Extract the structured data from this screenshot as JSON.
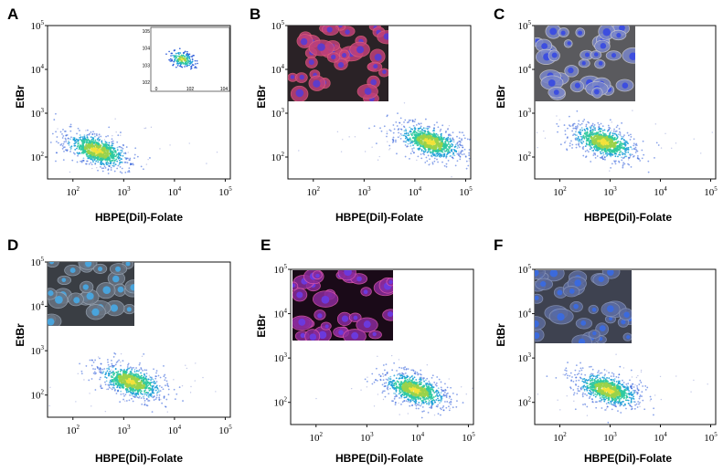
{
  "chart_data": [
    {
      "type": "scatter",
      "panel": "A",
      "xlabel": "HBPE(Dil)-Folate",
      "ylabel": "EtBr",
      "xscale": "log",
      "yscale": "log",
      "x_ticks": [
        "10^2",
        "10^3",
        "10^4",
        "10^5"
      ],
      "y_ticks": [
        "10^2",
        "10^3",
        "10^4",
        "10^5"
      ],
      "cluster_center": {
        "x": 300,
        "y": 140
      },
      "inset": {
        "kind": "flow-scatter",
        "x_ticks": [
          "0",
          "10^2",
          "10^4"
        ],
        "y_ticks": [
          "10^2",
          "10^3",
          "10^4",
          "10^5"
        ]
      }
    },
    {
      "type": "scatter",
      "panel": "B",
      "xlabel": "HBPE(Dil)-Folate",
      "ylabel": "EtBr",
      "xscale": "log",
      "yscale": "log",
      "x_ticks": [
        "10^2",
        "10^3",
        "10^4",
        "10^5"
      ],
      "y_ticks": [
        "10^2",
        "10^3",
        "10^4",
        "10^5"
      ],
      "cluster_center": {
        "x": 20000,
        "y": 220
      },
      "inset": {
        "kind": "micrograph",
        "palette": "red-blue"
      }
    },
    {
      "type": "scatter",
      "panel": "C",
      "xlabel": "HBPE(Dil)-Folate",
      "ylabel": "EtBr",
      "xscale": "log",
      "yscale": "log",
      "x_ticks": [
        "10^2",
        "10^3",
        "10^4",
        "10^5"
      ],
      "y_ticks": [
        "10^2",
        "10^3",
        "10^4",
        "10^5"
      ],
      "cluster_center": {
        "x": 750,
        "y": 220
      },
      "inset": {
        "kind": "micrograph",
        "palette": "gray-blue"
      }
    },
    {
      "type": "scatter",
      "panel": "D",
      "xlabel": "HBPE(Dil)-Folate",
      "ylabel": "EtBr",
      "xscale": "log",
      "yscale": "log",
      "x_ticks": [
        "10^2",
        "10^3",
        "10^4",
        "10^5"
      ],
      "y_ticks": [
        "10^2",
        "10^3",
        "10^4",
        "10^5"
      ],
      "cluster_center": {
        "x": 1400,
        "y": 200
      },
      "inset": {
        "kind": "micrograph",
        "palette": "gray-cyan"
      }
    },
    {
      "type": "scatter",
      "panel": "E",
      "xlabel": "HBPE(Dil)-Folate",
      "ylabel": "EtBr",
      "xscale": "log",
      "yscale": "log",
      "x_ticks": [
        "10^2",
        "10^3",
        "10^4",
        "10^5"
      ],
      "y_ticks": [
        "10^2",
        "10^3",
        "10^4",
        "10^5"
      ],
      "cluster_center": {
        "x": 9000,
        "y": 190
      },
      "inset": {
        "kind": "micrograph",
        "palette": "magenta-blue"
      }
    },
    {
      "type": "scatter",
      "panel": "F",
      "xlabel": "HBPE(Dil)-Folate",
      "ylabel": "EtBr",
      "xscale": "log",
      "yscale": "log",
      "x_ticks": [
        "10^2",
        "10^3",
        "10^4",
        "10^5"
      ],
      "y_ticks": [
        "10^2",
        "10^3",
        "10^4",
        "10^5"
      ],
      "cluster_center": {
        "x": 900,
        "y": 190
      },
      "inset": {
        "kind": "micrograph",
        "palette": "gray-blue-cells"
      }
    }
  ]
}
